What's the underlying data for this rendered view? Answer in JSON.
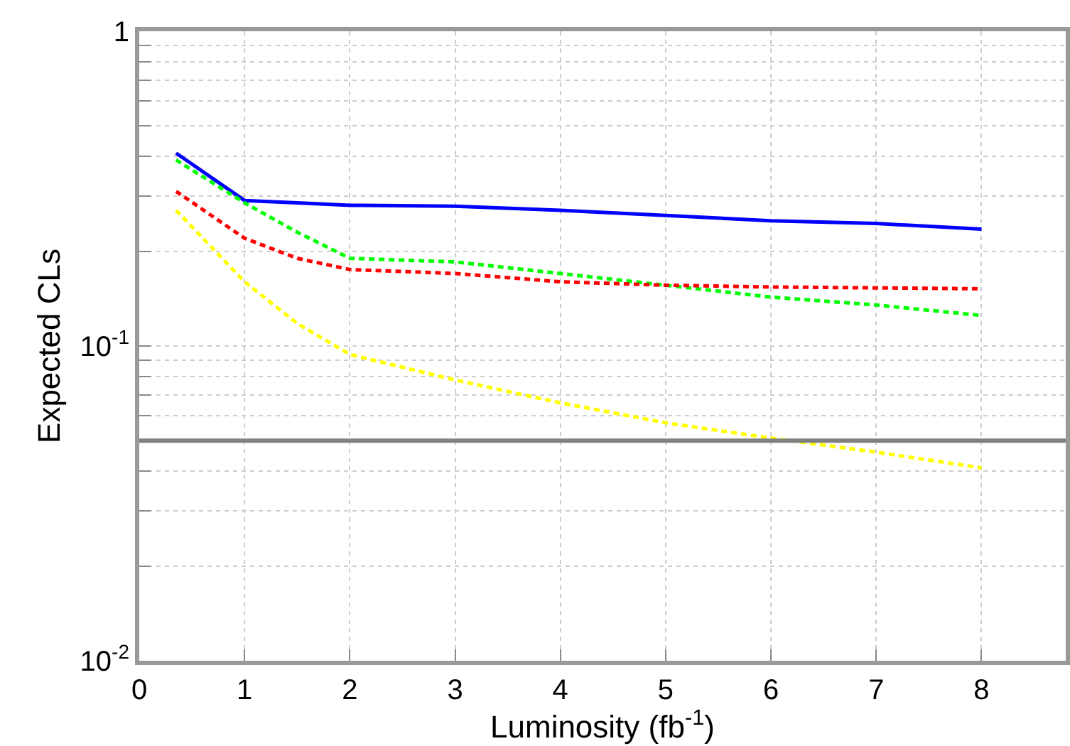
{
  "chart_data": {
    "type": "line",
    "xlabel": "Luminosity (fb$^{-1}$)",
    "ylabel": "Expected CLs",
    "x": [
      0.35,
      1,
      1.5,
      2,
      3,
      4,
      5,
      6,
      7,
      8
    ],
    "series": [
      {
        "color": "#0000ff",
        "line_style": "solid",
        "values": [
          0.41,
          0.29,
          0.285,
          0.28,
          0.278,
          0.27,
          0.26,
          0.25,
          0.245,
          0.235
        ]
      },
      {
        "color": "#00ff00",
        "values": [
          0.39,
          0.285,
          0.23,
          0.19,
          0.185,
          0.17,
          0.156,
          0.143,
          0.135,
          0.125
        ]
      },
      {
        "color": "#ff0000",
        "values": [
          0.31,
          0.22,
          0.19,
          0.175,
          0.17,
          0.16,
          0.156,
          0.154,
          0.153,
          0.152
        ]
      },
      {
        "color": "#ffff00",
        "values": [
          0.27,
          0.16,
          0.118,
          0.094,
          0.078,
          0.066,
          0.057,
          0.051,
          0.046,
          0.041
        ]
      }
    ],
    "log": "y",
    "xlim": [
      0,
      8.8
    ],
    "xticks": [
      0,
      1,
      2,
      3,
      4,
      5,
      6,
      7,
      8
    ],
    "ylim": [
      0.01,
      1
    ],
    "yticks": [
      {
        "value": 0.01,
        "label": "10$^{-2}$"
      },
      {
        "value": 0.02,
        "label": null
      },
      {
        "value": 0.03,
        "label": null
      },
      {
        "value": 0.04,
        "label": null
      },
      {
        "value": 0.05,
        "label": null
      },
      {
        "value": 0.06,
        "label": null
      },
      {
        "value": 0.07,
        "label": null
      },
      {
        "value": 0.08,
        "label": null
      },
      {
        "value": 0.09,
        "label": null
      },
      {
        "value": 0.1,
        "label": "10$^{-1}$"
      },
      {
        "value": 0.2,
        "label": null
      },
      {
        "value": 0.3,
        "label": null
      },
      {
        "value": 0.4,
        "label": null
      },
      {
        "value": 0.5,
        "label": null
      },
      {
        "value": 0.6,
        "label": null
      },
      {
        "value": 0.7,
        "label": null
      },
      {
        "value": 0.8,
        "label": null
      },
      {
        "value": 0.9,
        "label": null
      },
      1
    ],
    "ref_lines": [
      {
        "axis": "y",
        "value": 0.05,
        "color": "#808080"
      }
    ],
    "grid": true,
    "marker": "none",
    "line_style": "dashed"
  }
}
